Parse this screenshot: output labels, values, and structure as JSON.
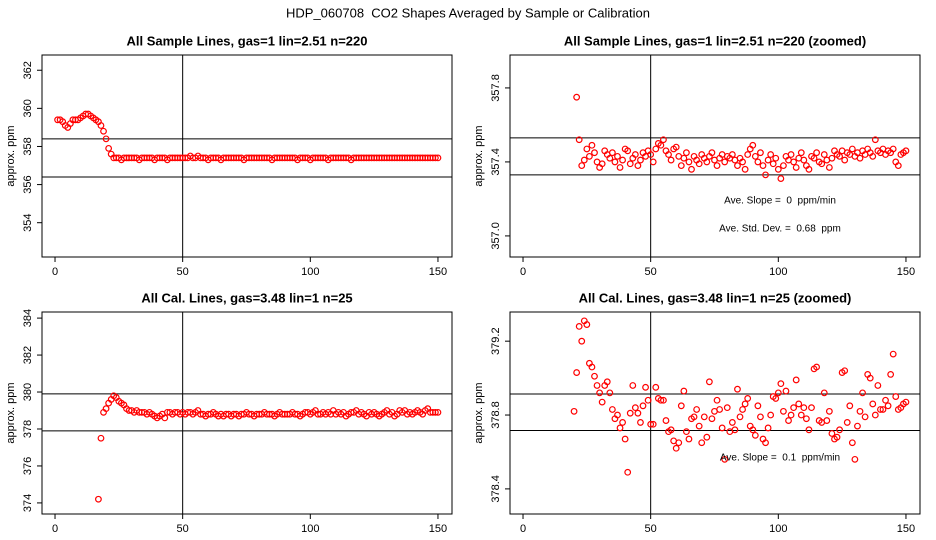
{
  "title": "HDP_060708  CO2 Shapes Averaged by Sample or Calibration",
  "chart_data": [
    {
      "type": "scatter",
      "title": "All Sample Lines, gas=1 lin=2.51 n=220",
      "y_label": "approx. ppm",
      "color": "#ff0000",
      "xlim": [
        -5.1,
        155.5
      ],
      "ylim": [
        352.2,
        362.8
      ],
      "xticks": [
        0,
        50,
        100,
        150
      ],
      "yticks": [
        354,
        356,
        358,
        360,
        362
      ],
      "vlines": [
        50
      ],
      "hlines": [
        358.4,
        356.4
      ],
      "x": [
        1,
        2,
        3,
        4,
        5,
        6,
        7,
        8,
        9,
        10,
        11,
        12,
        13,
        14,
        15,
        16,
        17,
        18,
        19,
        20,
        21,
        22,
        23,
        24,
        25,
        26,
        27,
        28,
        29,
        30,
        31,
        32,
        33,
        34,
        35,
        36,
        37,
        38,
        39,
        40,
        41,
        42,
        43,
        44,
        45,
        46,
        47,
        48,
        49,
        50,
        51,
        52,
        53,
        54,
        55,
        56,
        57,
        58,
        59,
        60,
        61,
        62,
        63,
        64,
        65,
        66,
        67,
        68,
        69,
        70,
        71,
        72,
        73,
        74,
        75,
        76,
        77,
        78,
        79,
        80,
        81,
        82,
        83,
        84,
        85,
        86,
        87,
        88,
        89,
        90,
        91,
        92,
        93,
        94,
        95,
        96,
        97,
        98,
        99,
        100,
        101,
        102,
        103,
        104,
        105,
        106,
        107,
        108,
        109,
        110,
        111,
        112,
        113,
        114,
        115,
        116,
        117,
        118,
        119,
        120,
        121,
        122,
        123,
        124,
        125,
        126,
        127,
        128,
        129,
        130,
        131,
        132,
        133,
        134,
        135,
        136,
        137,
        138,
        139,
        140,
        141,
        142,
        143,
        144,
        145,
        146,
        147,
        148,
        149,
        150
      ],
      "values": [
        359.4,
        359.4,
        359.3,
        359.1,
        359.0,
        359.2,
        359.4,
        359.4,
        359.4,
        359.5,
        359.6,
        359.7,
        359.7,
        359.6,
        359.5,
        359.4,
        359.3,
        359.1,
        358.8,
        358.4,
        357.9,
        357.6,
        357.4,
        357.4,
        357.4,
        357.3,
        357.4,
        357.4,
        357.4,
        357.4,
        357.4,
        357.4,
        357.3,
        357.4,
        357.4,
        357.4,
        357.4,
        357.4,
        357.3,
        357.4,
        357.4,
        357.4,
        357.4,
        357.3,
        357.4,
        357.4,
        357.4,
        357.4,
        357.4,
        357.4,
        357.4,
        357.4,
        357.5,
        357.4,
        357.4,
        357.5,
        357.4,
        357.4,
        357.4,
        357.3,
        357.4,
        357.4,
        357.4,
        357.4,
        357.3,
        357.4,
        357.4,
        357.4,
        357.4,
        357.4,
        357.4,
        357.4,
        357.4,
        357.3,
        357.4,
        357.4,
        357.4,
        357.4,
        357.4,
        357.4,
        357.4,
        357.4,
        357.4,
        357.4,
        357.3,
        357.4,
        357.4,
        357.4,
        357.4,
        357.4,
        357.4,
        357.4,
        357.4,
        357.4,
        357.3,
        357.4,
        357.4,
        357.4,
        357.4,
        357.3,
        357.4,
        357.4,
        357.4,
        357.4,
        357.4,
        357.4,
        357.3,
        357.4,
        357.4,
        357.4,
        357.4,
        357.4,
        357.4,
        357.4,
        357.4,
        357.3,
        357.4,
        357.4,
        357.4,
        357.4,
        357.4,
        357.4,
        357.4,
        357.4,
        357.4,
        357.4,
        357.4,
        357.4,
        357.4,
        357.4,
        357.4,
        357.4,
        357.4,
        357.4,
        357.4,
        357.4,
        357.4,
        357.4,
        357.4,
        357.4,
        357.4,
        357.4,
        357.4,
        357.4,
        357.4,
        357.4,
        357.4,
        357.4,
        357.4,
        357.4
      ]
    },
    {
      "type": "scatter",
      "title": "All Sample Lines, gas=1 lin=2.51 n=220 (zoomed)",
      "y_label": "approx. ppm",
      "color": "#ff0000",
      "xlim": [
        -5.1,
        155.5
      ],
      "ylim": [
        356.886,
        357.978
      ],
      "xticks": [
        0,
        50,
        100,
        150
      ],
      "yticks": [
        {
          "value": 357,
          "label": "357.0"
        },
        357.4,
        357.8
      ],
      "vlines": [
        50
      ],
      "hlines": [
        357.53,
        357.33
      ],
      "annotations": [
        "Ave. Slope =  0  ppm/min",
        "Ave. Std. Dev. =  0.68  ppm"
      ],
      "x": [
        21,
        22,
        23,
        24,
        25,
        26,
        27,
        28,
        29,
        30,
        31,
        32,
        33,
        34,
        35,
        36,
        37,
        38,
        39,
        40,
        41,
        42,
        43,
        44,
        45,
        46,
        47,
        48,
        49,
        50,
        51,
        52,
        53,
        54,
        55,
        56,
        57,
        58,
        59,
        60,
        61,
        62,
        63,
        64,
        65,
        66,
        67,
        68,
        69,
        70,
        71,
        72,
        73,
        74,
        75,
        76,
        77,
        78,
        79,
        80,
        81,
        82,
        83,
        84,
        85,
        86,
        87,
        88,
        89,
        90,
        91,
        92,
        93,
        94,
        95,
        96,
        97,
        98,
        99,
        100,
        101,
        102,
        103,
        104,
        105,
        106,
        107,
        108,
        109,
        110,
        111,
        112,
        113,
        114,
        115,
        116,
        117,
        118,
        119,
        120,
        121,
        122,
        123,
        124,
        125,
        126,
        127,
        128,
        129,
        130,
        131,
        132,
        133,
        134,
        135,
        136,
        137,
        138,
        139,
        140,
        141,
        142,
        143,
        144,
        145,
        146,
        147,
        148,
        149,
        150
      ],
      "values": [
        357.75,
        357.52,
        357.38,
        357.41,
        357.47,
        357.43,
        357.49,
        357.45,
        357.4,
        357.37,
        357.39,
        357.46,
        357.44,
        357.42,
        357.45,
        357.4,
        357.43,
        357.37,
        357.41,
        357.47,
        357.46,
        357.39,
        357.42,
        357.44,
        357.38,
        357.41,
        357.45,
        357.43,
        357.46,
        357.44,
        357.4,
        357.47,
        357.5,
        357.49,
        357.52,
        357.46,
        357.44,
        357.41,
        357.47,
        357.48,
        357.43,
        357.38,
        357.42,
        357.45,
        357.4,
        357.36,
        357.43,
        357.41,
        357.39,
        357.44,
        357.42,
        357.4,
        357.43,
        357.45,
        357.41,
        357.38,
        357.42,
        357.44,
        357.4,
        357.43,
        357.42,
        357.44,
        357.41,
        357.38,
        357.42,
        357.4,
        357.36,
        357.44,
        357.47,
        357.49,
        357.43,
        357.4,
        357.45,
        357.38,
        357.33,
        357.41,
        357.44,
        357.39,
        357.42,
        357.36,
        357.31,
        357.38,
        357.43,
        357.41,
        357.44,
        357.4,
        357.37,
        357.42,
        357.45,
        357.41,
        357.38,
        357.36,
        357.43,
        357.42,
        357.45,
        357.4,
        357.39,
        357.44,
        357.41,
        357.37,
        357.42,
        357.46,
        357.44,
        357.43,
        357.46,
        357.41,
        357.45,
        357.44,
        357.47,
        357.43,
        357.45,
        357.42,
        357.46,
        357.44,
        357.47,
        357.45,
        357.43,
        357.52,
        357.46,
        357.45,
        357.47,
        357.44,
        357.46,
        357.45,
        357.47,
        357.4,
        357.38,
        357.44,
        357.45,
        357.46
      ]
    },
    {
      "type": "scatter",
      "title": "All Cal. Lines, gas=3.48 lin=1 n=25",
      "y_label": "approx. ppm",
      "color": "#ff0000",
      "xlim": [
        -5.1,
        155.5
      ],
      "ylim": [
        373.4,
        384.33
      ],
      "xticks": [
        0,
        50,
        100,
        150
      ],
      "yticks": [
        374,
        376,
        378,
        380,
        382,
        384
      ],
      "vlines": [
        50
      ],
      "hlines": [
        379.9,
        377.9
      ],
      "x": [
        17,
        18,
        19,
        20,
        21,
        22,
        23,
        24,
        25,
        26,
        27,
        28,
        29,
        30,
        31,
        32,
        33,
        34,
        35,
        36,
        37,
        38,
        39,
        40,
        41,
        42,
        43,
        44,
        45,
        46,
        47,
        48,
        49,
        50,
        51,
        52,
        53,
        54,
        55,
        56,
        57,
        58,
        59,
        60,
        61,
        62,
        63,
        64,
        65,
        66,
        67,
        68,
        69,
        70,
        71,
        72,
        73,
        74,
        75,
        76,
        77,
        78,
        79,
        80,
        81,
        82,
        83,
        84,
        85,
        86,
        87,
        88,
        89,
        90,
        91,
        92,
        93,
        94,
        95,
        96,
        97,
        98,
        99,
        100,
        101,
        102,
        103,
        104,
        105,
        106,
        107,
        108,
        109,
        110,
        111,
        112,
        113,
        114,
        115,
        116,
        117,
        118,
        119,
        120,
        121,
        122,
        123,
        124,
        125,
        126,
        127,
        128,
        129,
        130,
        131,
        132,
        133,
        134,
        135,
        136,
        137,
        138,
        139,
        140,
        141,
        142,
        143,
        144,
        145,
        146,
        147,
        148,
        149,
        150
      ],
      "values": [
        374.2,
        377.5,
        378.9,
        379.1,
        379.4,
        379.6,
        379.8,
        379.7,
        379.5,
        379.4,
        379.3,
        379.1,
        379.0,
        379.0,
        378.9,
        379.0,
        378.9,
        378.9,
        378.9,
        378.8,
        378.9,
        378.8,
        378.7,
        378.6,
        378.7,
        378.8,
        378.6,
        378.9,
        378.9,
        378.8,
        378.9,
        378.9,
        378.8,
        378.9,
        378.8,
        378.9,
        378.9,
        378.8,
        378.9,
        379.0,
        378.8,
        378.8,
        378.7,
        378.8,
        378.8,
        378.9,
        378.8,
        378.7,
        378.8,
        378.7,
        378.8,
        378.8,
        378.7,
        378.8,
        378.8,
        378.7,
        378.8,
        378.8,
        378.9,
        378.8,
        378.8,
        378.7,
        378.8,
        378.8,
        378.8,
        378.9,
        378.8,
        378.8,
        378.8,
        378.7,
        378.8,
        378.9,
        378.8,
        378.8,
        378.8,
        378.8,
        378.9,
        378.8,
        378.8,
        378.7,
        378.8,
        378.9,
        378.9,
        378.8,
        378.9,
        379.0,
        378.8,
        378.8,
        378.9,
        378.8,
        378.9,
        378.8,
        379.0,
        378.8,
        378.9,
        378.8,
        378.9,
        378.7,
        378.8,
        378.9,
        378.9,
        379.0,
        378.8,
        378.9,
        378.8,
        378.7,
        378.9,
        378.8,
        378.9,
        378.8,
        378.7,
        378.8,
        378.9,
        379.0,
        378.8,
        378.9,
        378.7,
        378.8,
        379.0,
        378.9,
        379.0,
        378.8,
        378.9,
        378.8,
        378.9,
        379.0,
        378.9,
        378.8,
        379.0,
        379.1,
        378.9,
        378.9,
        378.9,
        378.9
      ]
    },
    {
      "type": "scatter",
      "title": "All Cal. Lines, gas=3.48 lin=1 n=25 (zoomed)",
      "y_label": "approx. ppm",
      "color": "#ff0000",
      "xlim": [
        -5.1,
        155.5
      ],
      "ylim": [
        378.264,
        379.358
      ],
      "xticks": [
        0,
        50,
        100,
        150
      ],
      "yticks": [
        378.4,
        378.8,
        379.2
      ],
      "vlines": [
        50
      ],
      "hlines": [
        378.914,
        378.716
      ],
      "annotations": [
        "Ave. Slope =  0.1  ppm/min"
      ],
      "x": [
        20,
        21,
        22,
        23,
        24,
        25,
        26,
        27,
        28,
        29,
        30,
        31,
        32,
        33,
        34,
        35,
        36,
        37,
        38,
        39,
        40,
        41,
        42,
        43,
        44,
        45,
        46,
        47,
        48,
        49,
        50,
        51,
        52,
        53,
        54,
        55,
        56,
        57,
        58,
        59,
        60,
        61,
        62,
        63,
        64,
        65,
        66,
        67,
        68,
        69,
        70,
        71,
        72,
        73,
        74,
        75,
        76,
        77,
        78,
        79,
        80,
        81,
        82,
        83,
        84,
        85,
        86,
        87,
        88,
        89,
        90,
        91,
        92,
        93,
        94,
        95,
        96,
        97,
        98,
        99,
        100,
        101,
        102,
        103,
        104,
        105,
        106,
        107,
        108,
        109,
        110,
        111,
        112,
        113,
        114,
        115,
        116,
        117,
        118,
        119,
        120,
        121,
        122,
        123,
        124,
        125,
        126,
        127,
        128,
        129,
        130,
        131,
        132,
        133,
        134,
        135,
        136,
        137,
        138,
        139,
        140,
        141,
        142,
        143,
        144,
        145,
        146,
        147,
        148,
        149,
        150
      ],
      "values": [
        378.82,
        379.03,
        379.28,
        379.2,
        379.31,
        379.29,
        379.08,
        379.06,
        379.01,
        378.96,
        378.92,
        378.87,
        378.96,
        378.98,
        378.92,
        378.83,
        378.78,
        378.8,
        378.73,
        378.76,
        378.67,
        378.49,
        378.81,
        378.96,
        378.84,
        378.81,
        378.76,
        378.85,
        378.95,
        378.88,
        378.75,
        378.75,
        378.95,
        378.89,
        378.88,
        378.88,
        378.77,
        378.71,
        378.72,
        378.66,
        378.62,
        378.65,
        378.85,
        378.93,
        378.71,
        378.67,
        378.78,
        378.79,
        378.83,
        378.74,
        378.65,
        378.79,
        378.68,
        378.98,
        378.78,
        378.82,
        378.88,
        378.83,
        378.73,
        378.56,
        378.84,
        378.71,
        378.76,
        378.72,
        378.94,
        378.79,
        378.83,
        378.86,
        378.89,
        378.74,
        378.72,
        378.69,
        378.85,
        378.79,
        378.67,
        378.65,
        378.73,
        378.8,
        378.9,
        378.89,
        378.92,
        378.97,
        378.82,
        378.93,
        378.77,
        378.8,
        378.84,
        378.99,
        378.86,
        378.8,
        378.84,
        378.78,
        378.72,
        378.84,
        379.05,
        379.06,
        378.77,
        378.76,
        378.92,
        378.77,
        378.82,
        378.7,
        378.67,
        378.68,
        378.72,
        379.03,
        379.04,
        378.76,
        378.85,
        378.65,
        378.56,
        378.74,
        378.82,
        378.92,
        378.79,
        379.02,
        379.0,
        378.86,
        378.8,
        378.96,
        378.83,
        378.83,
        378.88,
        378.85,
        379.02,
        379.13,
        378.9,
        378.83,
        378.84,
        378.86,
        378.87
      ]
    }
  ]
}
